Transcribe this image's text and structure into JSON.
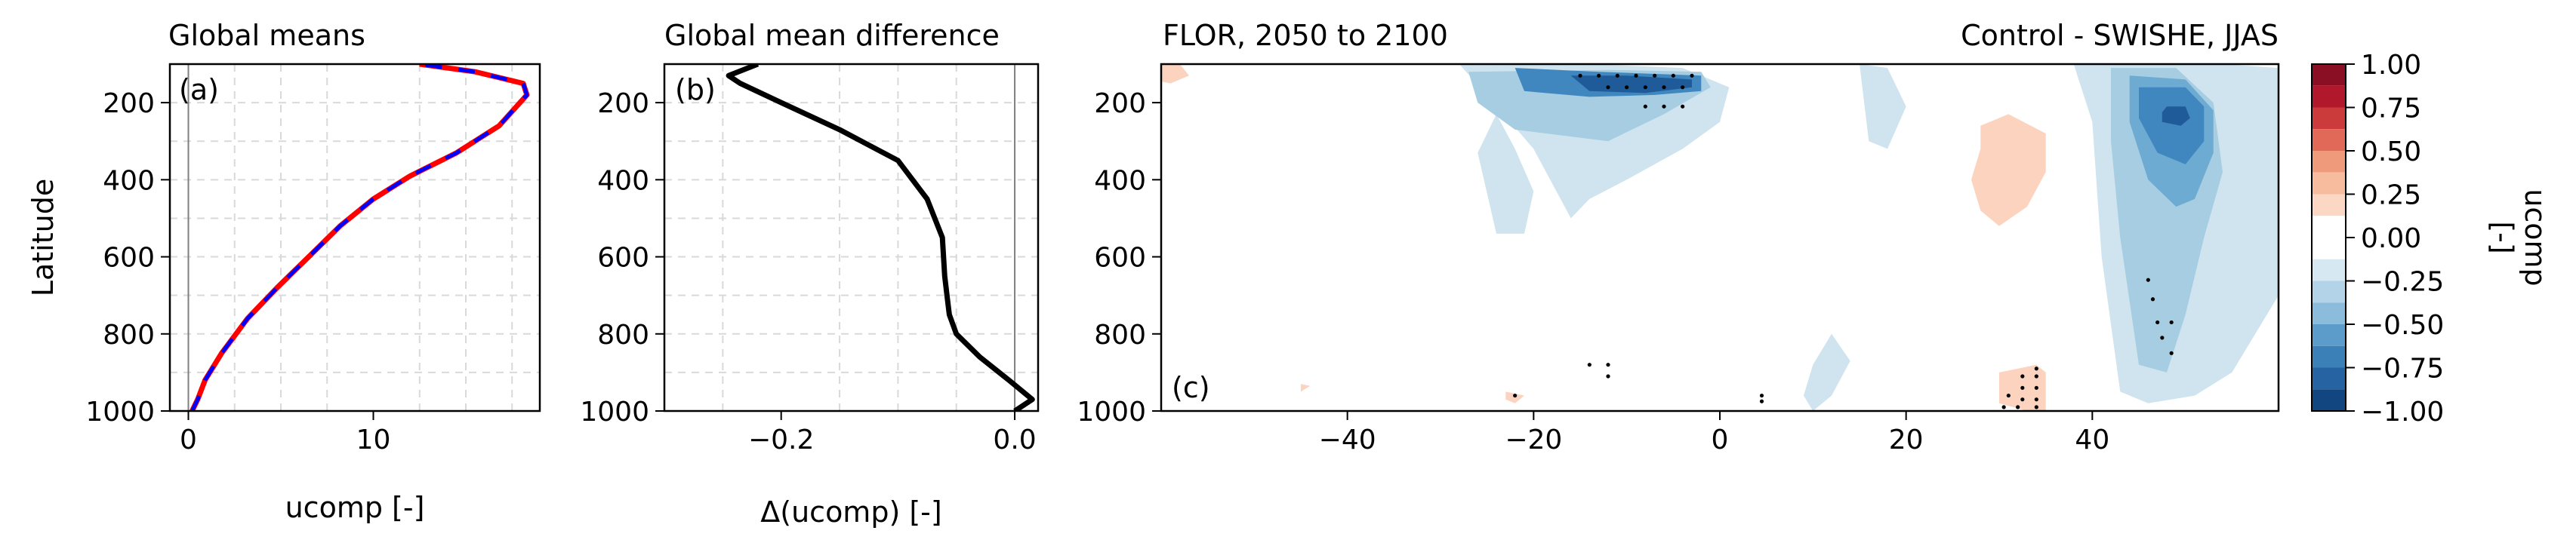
{
  "chart_data": [
    {
      "panel": "a",
      "type": "line",
      "title": "Global means",
      "panel_label": "(a)",
      "xlabel": "ucomp [-]",
      "ylabel": "Latitude",
      "xlim": [
        -1,
        19
      ],
      "ylim": [
        1000,
        100
      ],
      "xticks": [
        0,
        10
      ],
      "yticks": [
        200,
        400,
        600,
        800,
        1000
      ],
      "grid": true,
      "series": [
        {
          "color": "#ff0000",
          "style": "solid",
          "x": [
            0.2,
            0.5,
            0.9,
            1.8,
            3.2,
            4.8,
            6.5,
            8.2,
            10.0,
            12.0,
            14.5,
            16.8,
            18.3,
            18.1,
            15.5,
            12.5
          ],
          "y": [
            1000,
            970,
            920,
            850,
            760,
            680,
            600,
            520,
            450,
            390,
            330,
            260,
            180,
            150,
            120,
            100
          ]
        },
        {
          "color": "#0000ff",
          "style": "dashed",
          "x": [
            0.2,
            0.5,
            0.9,
            1.8,
            3.2,
            4.8,
            6.5,
            8.2,
            10.0,
            12.0,
            14.5,
            16.8,
            18.3,
            18.1,
            15.5,
            12.5
          ],
          "y": [
            1000,
            970,
            920,
            850,
            760,
            680,
            600,
            520,
            450,
            390,
            330,
            260,
            180,
            150,
            120,
            100
          ]
        }
      ]
    },
    {
      "panel": "b",
      "type": "line",
      "title": "Global mean difference",
      "panel_label": "(b)",
      "xlabel": "Δ(ucomp) [-]",
      "xlim": [
        -0.3,
        0.02
      ],
      "ylim": [
        1000,
        100
      ],
      "xticks": [
        -0.2,
        0.0
      ],
      "xtick_labels": [
        "−0.2",
        "0.0"
      ],
      "yticks": [
        200,
        400,
        600,
        800,
        1000
      ],
      "grid": true,
      "series": [
        {
          "color": "#000000",
          "x": [
            -0.22,
            -0.245,
            -0.235,
            -0.2,
            -0.15,
            -0.1,
            -0.075,
            -0.062,
            -0.06,
            -0.058,
            -0.056,
            -0.05,
            -0.03,
            -0.005,
            0.015,
            0.0
          ],
          "y": [
            100,
            130,
            150,
            200,
            270,
            350,
            450,
            550,
            650,
            700,
            750,
            800,
            860,
            920,
            970,
            1000
          ]
        }
      ]
    },
    {
      "panel": "c",
      "type": "heatmap",
      "title": "FLOR, 2050 to 2100",
      "title_right": "Control - SWISHE, JJAS",
      "panel_label": "(c)",
      "xlim": [
        -60,
        60
      ],
      "ylim": [
        1000,
        100
      ],
      "xticks": [
        -40,
        -20,
        0,
        20,
        40
      ],
      "xtick_labels": [
        "−40",
        "−20",
        "0",
        "20",
        "40"
      ],
      "yticks": [
        200,
        400,
        600,
        800,
        1000
      ],
      "levels": [
        -1,
        -0.875,
        -0.75,
        -0.625,
        -0.5,
        -0.375,
        -0.25,
        -0.125,
        0.125,
        0.25,
        0.375,
        0.5,
        0.625,
        0.75,
        0.875,
        1.0
      ],
      "colors": {
        "neg_1": "#cfe4ef",
        "neg_2": "#a6cde2",
        "neg_3": "#6dabd2",
        "neg_4": "#3f87be",
        "neg_5": "#1f5b99",
        "pos_1": "#fbd3bf",
        "pos_2": "#f4a582",
        "pos_3": "#d6604d"
      },
      "contours": [
        {
          "level": -0.18,
          "x": [
            -28,
            -14,
            -4,
            1,
            0,
            -4,
            -10,
            -14,
            -16,
            -20,
            -25
          ],
          "y": [
            100,
            100,
            110,
            160,
            250,
            320,
            400,
            450,
            500,
            320,
            180
          ]
        },
        {
          "level": -0.18,
          "x": [
            -24,
            -22,
            -20,
            -21,
            -24,
            -26
          ],
          "y": [
            230,
            320,
            430,
            540,
            540,
            330
          ]
        },
        {
          "level": -0.18,
          "x": [
            10,
            12,
            14,
            12,
            10,
            9
          ],
          "y": [
            880,
            800,
            870,
            960,
            1000,
            960
          ]
        },
        {
          "level": -0.18,
          "x": [
            38,
            54,
            60,
            60,
            55,
            51,
            46,
            43,
            41,
            40
          ],
          "y": [
            100,
            100,
            110,
            700,
            900,
            960,
            980,
            950,
            600,
            250
          ]
        },
        {
          "level": -0.18,
          "x": [
            15,
            18,
            20,
            18,
            16
          ],
          "y": [
            100,
            110,
            210,
            320,
            300
          ]
        },
        {
          "level": -0.375,
          "x": [
            -27,
            -12,
            -2,
            -1,
            -6,
            -12,
            -22,
            -26
          ],
          "y": [
            120,
            115,
            120,
            160,
            230,
            300,
            270,
            200
          ]
        },
        {
          "level": -0.375,
          "x": [
            42,
            49,
            53,
            54,
            52,
            50,
            48,
            45,
            43,
            42
          ],
          "y": [
            110,
            110,
            200,
            380,
            550,
            750,
            900,
            880,
            550,
            300
          ]
        },
        {
          "level": -0.5,
          "x": [
            44,
            50,
            53,
            53,
            51,
            49,
            46,
            44
          ],
          "y": [
            130,
            140,
            220,
            330,
            450,
            470,
            400,
            250
          ]
        },
        {
          "level": -0.625,
          "x": [
            -22,
            -13,
            -2,
            -2,
            -7,
            -14,
            -21
          ],
          "y": [
            110,
            120,
            130,
            170,
            180,
            185,
            170
          ]
        },
        {
          "level": -0.625,
          "x": [
            45,
            50,
            52,
            52,
            50,
            47,
            45
          ],
          "y": [
            160,
            160,
            210,
            300,
            360,
            330,
            240
          ]
        },
        {
          "level": -0.75,
          "x": [
            -16,
            -10,
            -3,
            -3,
            -8,
            -14
          ],
          "y": [
            130,
            130,
            140,
            160,
            175,
            170
          ]
        },
        {
          "level": -0.75,
          "x": [
            48,
            50,
            50.5,
            49.5,
            47.5,
            47.5
          ],
          "y": [
            210,
            210,
            240,
            260,
            250,
            225
          ]
        },
        {
          "level": 0.18,
          "x": [
            -60,
            -58,
            -57,
            -59,
            -60
          ],
          "y": [
            100,
            100,
            130,
            150,
            145
          ]
        },
        {
          "level": 0.18,
          "x": [
            28,
            31,
            35,
            35,
            33,
            30,
            28,
            27,
            28
          ],
          "y": [
            260,
            230,
            280,
            380,
            470,
            520,
            480,
            400,
            320
          ]
        },
        {
          "level": 0.18,
          "x": [
            30,
            34,
            35,
            35,
            33,
            30
          ],
          "y": [
            900,
            880,
            900,
            1000,
            1000,
            980
          ]
        },
        {
          "level": 0.18,
          "x": [
            -23,
            -21,
            -22,
            -23
          ],
          "y": [
            950,
            960,
            980,
            970
          ]
        },
        {
          "level": 0.18,
          "x": [
            -45,
            -44,
            -45
          ],
          "y": [
            930,
            935,
            950
          ]
        }
      ],
      "stipples": [
        {
          "x": -15,
          "y": 130
        },
        {
          "x": -13,
          "y": 130
        },
        {
          "x": -11,
          "y": 130
        },
        {
          "x": -9,
          "y": 130
        },
        {
          "x": -7,
          "y": 130
        },
        {
          "x": -5,
          "y": 130
        },
        {
          "x": -3,
          "y": 130
        },
        {
          "x": -12,
          "y": 160
        },
        {
          "x": -10,
          "y": 160
        },
        {
          "x": -8,
          "y": 160
        },
        {
          "x": -6,
          "y": 160
        },
        {
          "x": -4,
          "y": 160
        },
        {
          "x": -8,
          "y": 210
        },
        {
          "x": -6,
          "y": 210
        },
        {
          "x": -4,
          "y": 210
        },
        {
          "x": 46,
          "y": 660
        },
        {
          "x": 46.5,
          "y": 710
        },
        {
          "x": 47,
          "y": 770
        },
        {
          "x": 48.5,
          "y": 770
        },
        {
          "x": 47.5,
          "y": 810
        },
        {
          "x": 48.5,
          "y": 850
        },
        {
          "x": -14,
          "y": 880
        },
        {
          "x": -12,
          "y": 880
        },
        {
          "x": -12,
          "y": 910
        },
        {
          "x": -22,
          "y": 960
        },
        {
          "x": 4.5,
          "y": 960
        },
        {
          "x": 4.5,
          "y": 975
        },
        {
          "x": 34,
          "y": 890
        },
        {
          "x": 32.5,
          "y": 910
        },
        {
          "x": 34,
          "y": 910
        },
        {
          "x": 32.5,
          "y": 940
        },
        {
          "x": 34,
          "y": 940
        },
        {
          "x": 31,
          "y": 960
        },
        {
          "x": 32.5,
          "y": 970
        },
        {
          "x": 34,
          "y": 970
        },
        {
          "x": 30.5,
          "y": 990
        },
        {
          "x": 32,
          "y": 990
        },
        {
          "x": 34,
          "y": 990
        }
      ]
    },
    {
      "panel": "colorbar",
      "type": "colorbar",
      "label": "ucomp\n[-]",
      "vlim": [
        -1,
        1
      ],
      "ticks": [
        1.0,
        0.75,
        0.5,
        0.25,
        0.0,
        -0.25,
        -0.5,
        -0.75,
        -1.0
      ],
      "tick_labels": [
        "1.00",
        "0.75",
        "0.50",
        "0.25",
        "0.00",
        "−0.25",
        "−0.50",
        "−0.75",
        "−1.00"
      ],
      "bands": [
        {
          "from": 0.875,
          "to": 1.0,
          "color": "#8a0f24"
        },
        {
          "from": 0.75,
          "to": 0.875,
          "color": "#b2182b"
        },
        {
          "from": 0.625,
          "to": 0.75,
          "color": "#cc3b3b"
        },
        {
          "from": 0.5,
          "to": 0.625,
          "color": "#e06a57"
        },
        {
          "from": 0.375,
          "to": 0.5,
          "color": "#f09a7c"
        },
        {
          "from": 0.25,
          "to": 0.375,
          "color": "#f7bc9e"
        },
        {
          "from": 0.125,
          "to": 0.25,
          "color": "#fbd7c4"
        },
        {
          "from": -0.125,
          "to": 0.125,
          "color": "#ffffff"
        },
        {
          "from": -0.25,
          "to": -0.125,
          "color": "#d6e8f2"
        },
        {
          "from": -0.375,
          "to": -0.25,
          "color": "#b3d4e8"
        },
        {
          "from": -0.5,
          "to": -0.375,
          "color": "#8bbcdc"
        },
        {
          "from": -0.625,
          "to": -0.5,
          "color": "#5b9ccb"
        },
        {
          "from": -0.75,
          "to": -0.625,
          "color": "#3c80b8"
        },
        {
          "from": -0.875,
          "to": -0.75,
          "color": "#2563a2"
        },
        {
          "from": -1.0,
          "to": -0.875,
          "color": "#114680"
        }
      ]
    }
  ]
}
